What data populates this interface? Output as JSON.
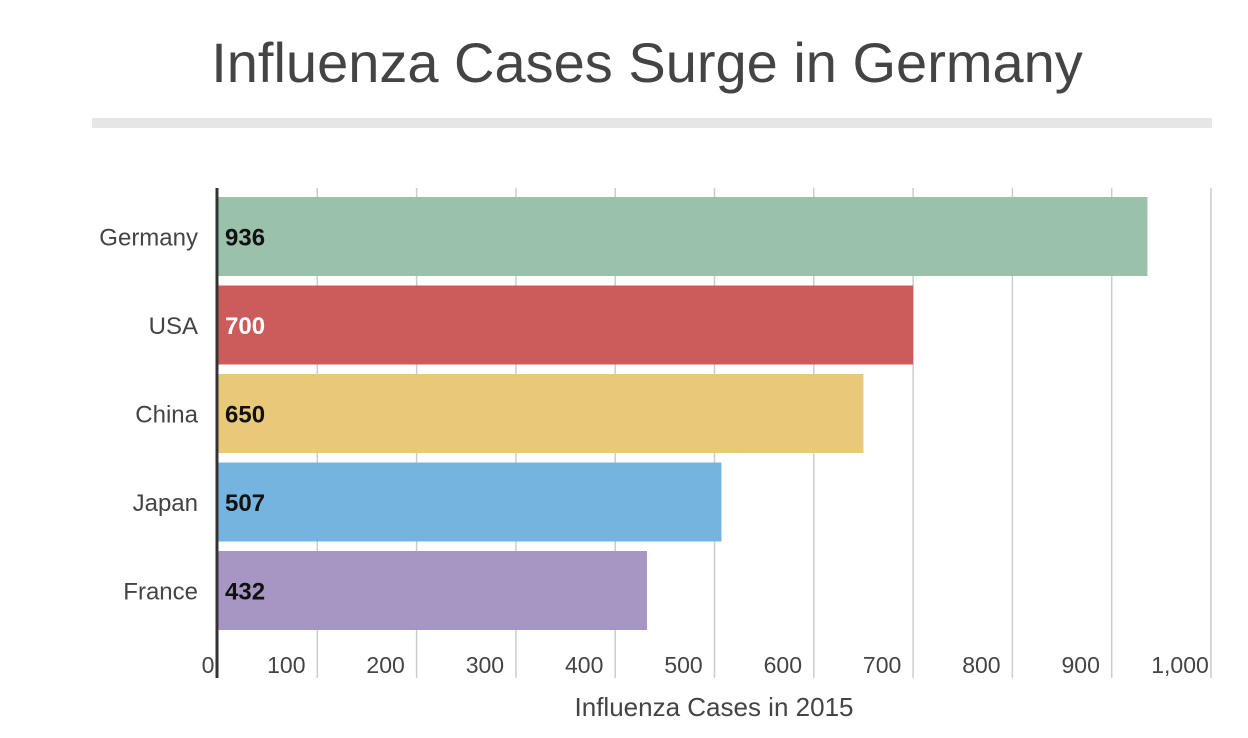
{
  "chart_data": {
    "type": "bar",
    "orientation": "horizontal",
    "title": "Influenza Cases Surge in Germany",
    "xlabel": "Influenza Cases in 2015",
    "ylabel": "",
    "xlim": [
      0,
      1000
    ],
    "x_ticks": [
      0,
      100,
      200,
      300,
      400,
      500,
      600,
      700,
      800,
      900,
      1000
    ],
    "x_tick_labels": [
      "0",
      "100",
      "200",
      "300",
      "400",
      "500",
      "600",
      "700",
      "800",
      "900",
      "1,000"
    ],
    "grid": true,
    "legend": "none",
    "categories": [
      "Germany",
      "USA",
      "China",
      "Japan",
      "France"
    ],
    "values": [
      936,
      700,
      650,
      507,
      432
    ],
    "data_labels": [
      "936",
      "700",
      "650",
      "507",
      "432"
    ],
    "colors": [
      "#9ac2ab",
      "#cc5b5b",
      "#e8c97a",
      "#76b4e0",
      "#a795c3"
    ],
    "label_colors": [
      "#111111",
      "#ffffff",
      "#111111",
      "#111111",
      "#111111"
    ],
    "text_color": "#444444",
    "grid_color": "#cccccc",
    "axis_color": "#333333",
    "rule_color": "#e6e6e6"
  }
}
